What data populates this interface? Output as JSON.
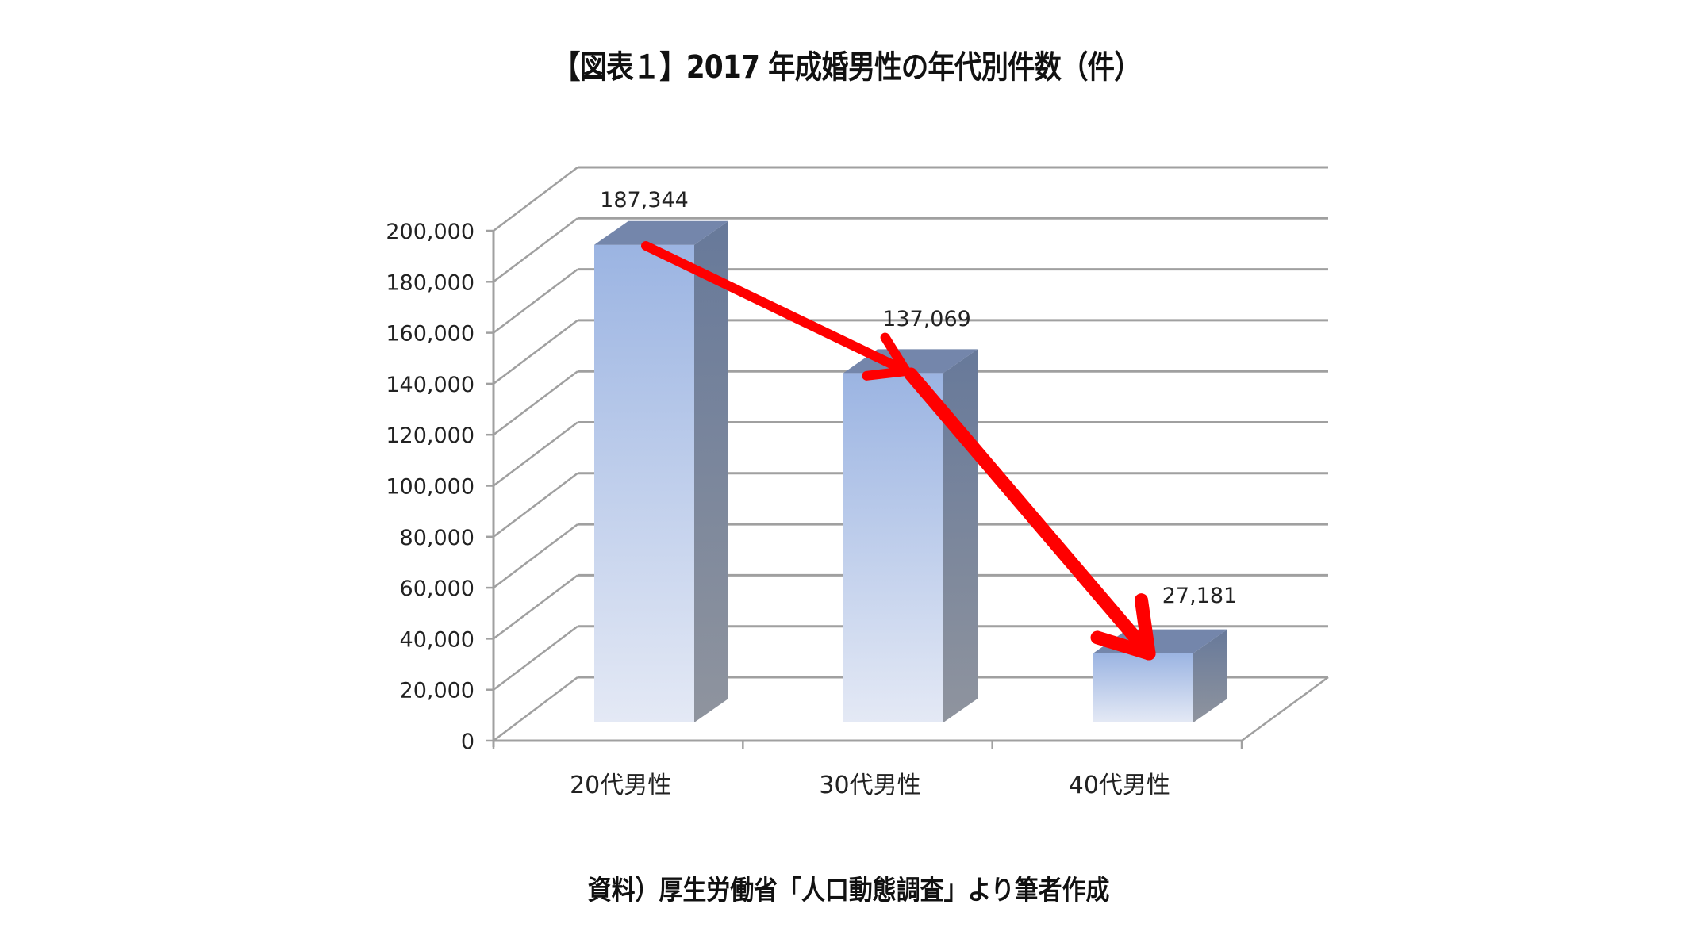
{
  "title": "【図表１】2017 年成婚男性の年代別件数（件）",
  "source_note": "資料）厚生労働省「人口動態調査」より筆者作成",
  "colors": {
    "bar_front_top": "#9bb4e2",
    "bar_front_bottom": "#e4e9f5",
    "bar_top_face": "#7486ab",
    "bar_side_top": "#67799a",
    "bar_side_bottom": "#8f949e",
    "grid": "#a0a0a0",
    "arrow": "#ff0000"
  },
  "chart_data": {
    "type": "bar",
    "style": "3d-column",
    "title": "【図表１】2017 年成婚男性の年代別件数（件）",
    "xlabel": "",
    "ylabel": "",
    "categories": [
      "20代男性",
      "30代男性",
      "40代男性"
    ],
    "values": [
      187344,
      137069,
      27181
    ],
    "data_labels": [
      "187,344",
      "137,069",
      "27,181"
    ],
    "ylim": [
      0,
      200000
    ],
    "yticks": [
      0,
      20000,
      40000,
      60000,
      80000,
      100000,
      120000,
      140000,
      160000,
      180000,
      200000
    ],
    "ytick_labels": [
      "0",
      "20,000",
      "40,000",
      "60,000",
      "80,000",
      "100,000",
      "120,000",
      "140,000",
      "160,000",
      "180,000",
      "200,000"
    ],
    "grid": true,
    "legend": null,
    "annotations": [
      {
        "type": "arrow",
        "from": "20代男性",
        "to": "30代男性",
        "color": "#ff0000"
      },
      {
        "type": "arrow",
        "from": "30代男性",
        "to": "40代男性",
        "color": "#ff0000"
      }
    ],
    "source": "資料）厚生労働省「人口動態調査」より筆者作成"
  }
}
